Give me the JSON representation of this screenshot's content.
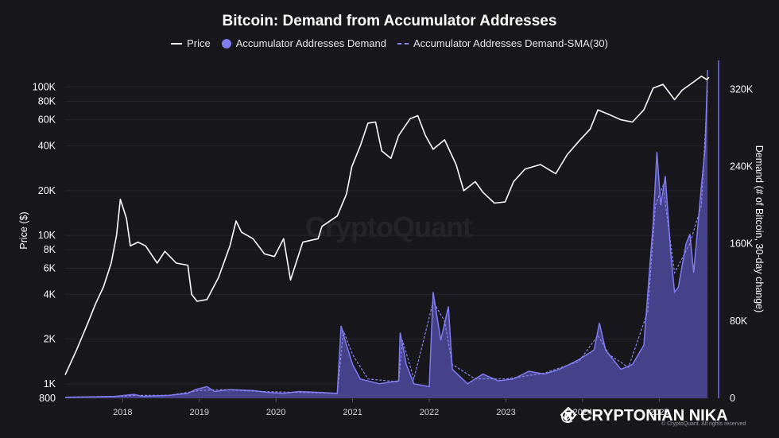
{
  "chart_data": {
    "type": "line",
    "title": "Bitcoin: Demand from Accumulator Addresses",
    "legend_position": "top-center",
    "grid": true,
    "x_ticks": [
      "2018",
      "2019",
      "2020",
      "2021",
      "2022",
      "2023",
      "2024",
      "2025"
    ],
    "y_left": {
      "label": "Price ($)",
      "scale": "log",
      "range": [
        800,
        130000
      ],
      "ticks": [
        800,
        1000,
        2000,
        4000,
        6000,
        8000,
        10000,
        20000,
        40000,
        60000,
        80000,
        100000
      ],
      "tick_labels": [
        "800",
        "1K",
        "2K",
        "4K",
        "6K",
        "8K",
        "10K",
        "20K",
        "40K",
        "60K",
        "80K",
        "100K"
      ]
    },
    "y_right": {
      "label": "Demand (# of Bitcoin, 30-day change)",
      "scale": "linear",
      "range": [
        0,
        340000
      ],
      "ticks": [
        0,
        80000,
        160000,
        240000,
        320000
      ],
      "tick_labels": [
        "0",
        "80K",
        "160K",
        "240K",
        "320K"
      ]
    },
    "series": [
      {
        "name": "Price",
        "color": "#ffffff",
        "points": [
          [
            2017.25,
            1150
          ],
          [
            2017.4,
            1700
          ],
          [
            2017.55,
            2600
          ],
          [
            2017.65,
            3500
          ],
          [
            2017.75,
            4500
          ],
          [
            2017.85,
            6500
          ],
          [
            2017.92,
            10000
          ],
          [
            2017.97,
            17500
          ],
          [
            2018.05,
            13000
          ],
          [
            2018.1,
            8500
          ],
          [
            2018.2,
            9000
          ],
          [
            2018.3,
            8500
          ],
          [
            2018.45,
            6500
          ],
          [
            2018.55,
            7800
          ],
          [
            2018.7,
            6500
          ],
          [
            2018.85,
            6300
          ],
          [
            2018.9,
            4000
          ],
          [
            2018.97,
            3600
          ],
          [
            2019.1,
            3700
          ],
          [
            2019.25,
            5200
          ],
          [
            2019.4,
            8500
          ],
          [
            2019.48,
            12500
          ],
          [
            2019.55,
            10500
          ],
          [
            2019.7,
            9500
          ],
          [
            2019.85,
            7500
          ],
          [
            2019.98,
            7200
          ],
          [
            2020.1,
            9500
          ],
          [
            2020.19,
            5000
          ],
          [
            2020.35,
            9000
          ],
          [
            2020.55,
            9500
          ],
          [
            2020.6,
            11500
          ],
          [
            2020.8,
            13500
          ],
          [
            2020.92,
            19000
          ],
          [
            2020.99,
            29000
          ],
          [
            2021.1,
            40000
          ],
          [
            2021.2,
            57000
          ],
          [
            2021.3,
            58000
          ],
          [
            2021.38,
            37000
          ],
          [
            2021.5,
            33000
          ],
          [
            2021.6,
            47000
          ],
          [
            2021.75,
            61000
          ],
          [
            2021.85,
            64000
          ],
          [
            2021.95,
            47000
          ],
          [
            2022.05,
            38000
          ],
          [
            2022.2,
            44000
          ],
          [
            2022.35,
            30000
          ],
          [
            2022.45,
            20000
          ],
          [
            2022.6,
            23000
          ],
          [
            2022.7,
            19500
          ],
          [
            2022.85,
            16500
          ],
          [
            2022.99,
            16800
          ],
          [
            2023.1,
            23000
          ],
          [
            2023.25,
            28000
          ],
          [
            2023.45,
            30000
          ],
          [
            2023.65,
            26000
          ],
          [
            2023.8,
            35000
          ],
          [
            2023.95,
            43000
          ],
          [
            2024.1,
            52000
          ],
          [
            2024.2,
            70000
          ],
          [
            2024.35,
            65000
          ],
          [
            2024.5,
            60000
          ],
          [
            2024.65,
            58000
          ],
          [
            2024.8,
            70000
          ],
          [
            2024.92,
            98000
          ],
          [
            2025.05,
            104000
          ],
          [
            2025.2,
            82000
          ],
          [
            2025.3,
            95000
          ],
          [
            2025.45,
            108000
          ],
          [
            2025.55,
            118000
          ],
          [
            2025.62,
            112000
          ],
          [
            2025.65,
            116000
          ]
        ]
      },
      {
        "name": "Accumulator Addresses Demand",
        "color": "#7f7cf0",
        "points": [
          [
            2017.25,
            1000
          ],
          [
            2017.6,
            1500
          ],
          [
            2017.9,
            2000
          ],
          [
            2018.15,
            4000
          ],
          [
            2018.25,
            2000
          ],
          [
            2018.6,
            3000
          ],
          [
            2018.85,
            5000
          ],
          [
            2018.95,
            9000
          ],
          [
            2019.1,
            12000
          ],
          [
            2019.2,
            7000
          ],
          [
            2019.4,
            9000
          ],
          [
            2019.7,
            8000
          ],
          [
            2019.9,
            6000
          ],
          [
            2020.1,
            5000
          ],
          [
            2020.3,
            7000
          ],
          [
            2020.6,
            6000
          ],
          [
            2020.8,
            5000
          ],
          [
            2020.85,
            75000
          ],
          [
            2020.9,
            60000
          ],
          [
            2021.0,
            35000
          ],
          [
            2021.1,
            20000
          ],
          [
            2021.35,
            15000
          ],
          [
            2021.6,
            18000
          ],
          [
            2021.62,
            68000
          ],
          [
            2021.7,
            35000
          ],
          [
            2021.8,
            15000
          ],
          [
            2022.0,
            12000
          ],
          [
            2022.05,
            110000
          ],
          [
            2022.15,
            60000
          ],
          [
            2022.25,
            95000
          ],
          [
            2022.3,
            30000
          ],
          [
            2022.5,
            15000
          ],
          [
            2022.7,
            25000
          ],
          [
            2022.9,
            18000
          ],
          [
            2023.1,
            20000
          ],
          [
            2023.3,
            28000
          ],
          [
            2023.5,
            25000
          ],
          [
            2023.7,
            30000
          ],
          [
            2023.95,
            40000
          ],
          [
            2024.15,
            50000
          ],
          [
            2024.22,
            78000
          ],
          [
            2024.3,
            50000
          ],
          [
            2024.5,
            30000
          ],
          [
            2024.65,
            35000
          ],
          [
            2024.8,
            55000
          ],
          [
            2024.88,
            140000
          ],
          [
            2024.92,
            180000
          ],
          [
            2024.97,
            255000
          ],
          [
            2025.02,
            200000
          ],
          [
            2025.08,
            230000
          ],
          [
            2025.15,
            150000
          ],
          [
            2025.2,
            110000
          ],
          [
            2025.25,
            115000
          ],
          [
            2025.35,
            160000
          ],
          [
            2025.4,
            170000
          ],
          [
            2025.45,
            130000
          ],
          [
            2025.55,
            220000
          ],
          [
            2025.6,
            260000
          ],
          [
            2025.63,
            340000
          ]
        ]
      },
      {
        "name": "Accumulator Addresses Demand-SMA(30)",
        "color": "#8a87f2",
        "points": [
          [
            2017.25,
            1000
          ],
          [
            2017.9,
            2000
          ],
          [
            2018.2,
            3000
          ],
          [
            2018.6,
            3000
          ],
          [
            2019.0,
            8000
          ],
          [
            2019.3,
            9000
          ],
          [
            2019.8,
            7000
          ],
          [
            2020.3,
            6000
          ],
          [
            2020.8,
            5000
          ],
          [
            2020.88,
            70000
          ],
          [
            2021.0,
            45000
          ],
          [
            2021.2,
            20000
          ],
          [
            2021.6,
            17000
          ],
          [
            2021.65,
            60000
          ],
          [
            2021.8,
            20000
          ],
          [
            2022.05,
            100000
          ],
          [
            2022.2,
            80000
          ],
          [
            2022.3,
            35000
          ],
          [
            2022.6,
            20000
          ],
          [
            2023.0,
            20000
          ],
          [
            2023.5,
            26000
          ],
          [
            2023.95,
            38000
          ],
          [
            2024.2,
            65000
          ],
          [
            2024.35,
            45000
          ],
          [
            2024.6,
            32000
          ],
          [
            2024.85,
            90000
          ],
          [
            2024.95,
            200000
          ],
          [
            2025.05,
            220000
          ],
          [
            2025.2,
            130000
          ],
          [
            2025.4,
            160000
          ],
          [
            2025.55,
            200000
          ],
          [
            2025.63,
            320000
          ]
        ]
      }
    ]
  },
  "watermark": "CryptoQuant",
  "overlay_brand": "@ CRYPTONIAN NIKA",
  "copyright": "© CryptoQuant. All rights reserved",
  "colors": {
    "background": "#18171c",
    "price": "#ffffff",
    "demand": "#7f7cf0",
    "demand_fill": "#4e4a9e",
    "sma": "#8a87f2"
  }
}
